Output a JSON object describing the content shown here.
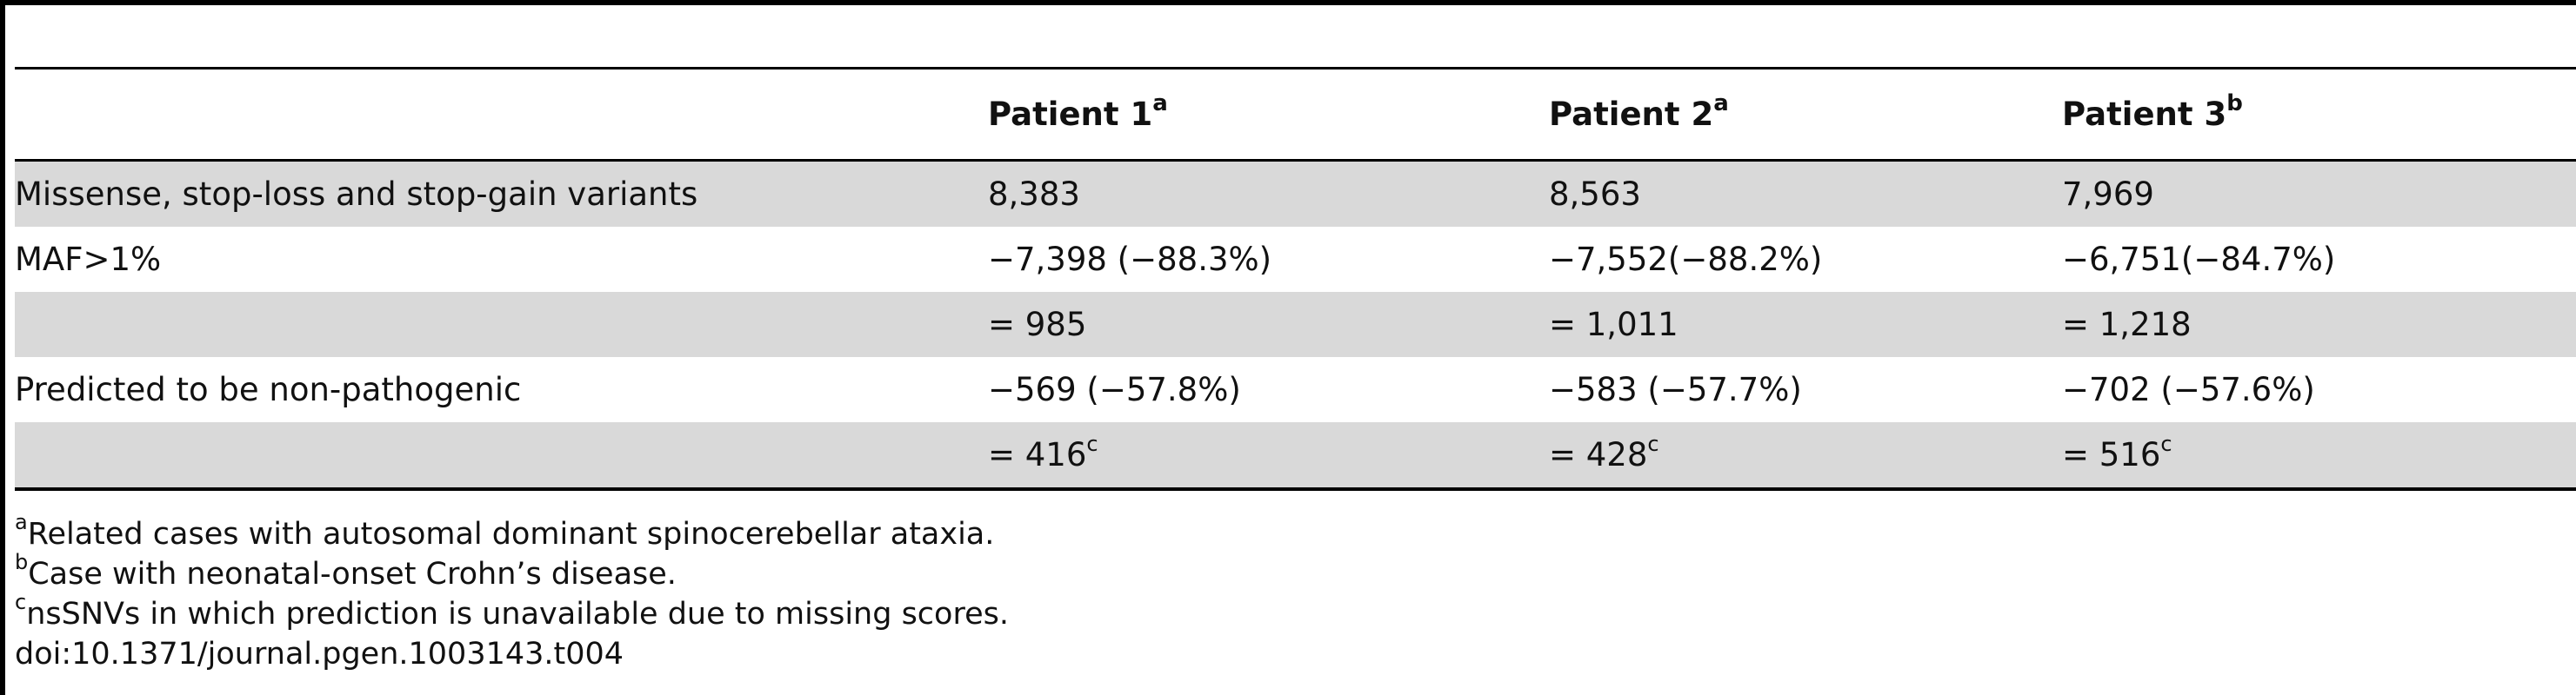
{
  "table": {
    "headers": [
      {
        "text": "",
        "sup": ""
      },
      {
        "text": "Patient 1",
        "sup": "a"
      },
      {
        "text": "Patient 2",
        "sup": "a"
      },
      {
        "text": "Patient 3",
        "sup": "b"
      }
    ],
    "rows": [
      {
        "shaded": true,
        "cells": [
          {
            "text": "Missense, stop-loss and stop-gain variants",
            "sup": ""
          },
          {
            "text": "8,383",
            "sup": ""
          },
          {
            "text": "8,563",
            "sup": ""
          },
          {
            "text": "7,969",
            "sup": ""
          }
        ]
      },
      {
        "shaded": false,
        "cells": [
          {
            "text": "MAF>1%",
            "sup": ""
          },
          {
            "text": "−7,398 (−88.3%)",
            "sup": ""
          },
          {
            "text": "−7,552(−88.2%)",
            "sup": ""
          },
          {
            "text": "−6,751(−84.7%)",
            "sup": ""
          }
        ]
      },
      {
        "shaded": true,
        "cells": [
          {
            "text": "",
            "sup": ""
          },
          {
            "text": "= 985",
            "sup": ""
          },
          {
            "text": "= 1,011",
            "sup": ""
          },
          {
            "text": "= 1,218",
            "sup": ""
          }
        ]
      },
      {
        "shaded": false,
        "cells": [
          {
            "text": "Predicted to be non-pathogenic",
            "sup": ""
          },
          {
            "text": "−569 (−57.8%)",
            "sup": ""
          },
          {
            "text": "−583 (−57.7%)",
            "sup": ""
          },
          {
            "text": "−702 (−57.6%)",
            "sup": ""
          }
        ]
      },
      {
        "shaded": true,
        "cells": [
          {
            "text": "",
            "sup": ""
          },
          {
            "text": "= 416",
            "sup": "c"
          },
          {
            "text": "= 428",
            "sup": "c"
          },
          {
            "text": "= 516",
            "sup": "c"
          }
        ]
      }
    ]
  },
  "footnotes": [
    {
      "sup": "a",
      "text": "Related cases with autosomal dominant spinocerebellar ataxia."
    },
    {
      "sup": "b",
      "text": "Case with neonatal-onset Crohn’s disease."
    },
    {
      "sup": "c",
      "text": "nsSNVs in which prediction is unavailable due to missing scores."
    },
    {
      "sup": "",
      "text": "doi:10.1371/journal.pgen.1003143.t004"
    }
  ]
}
